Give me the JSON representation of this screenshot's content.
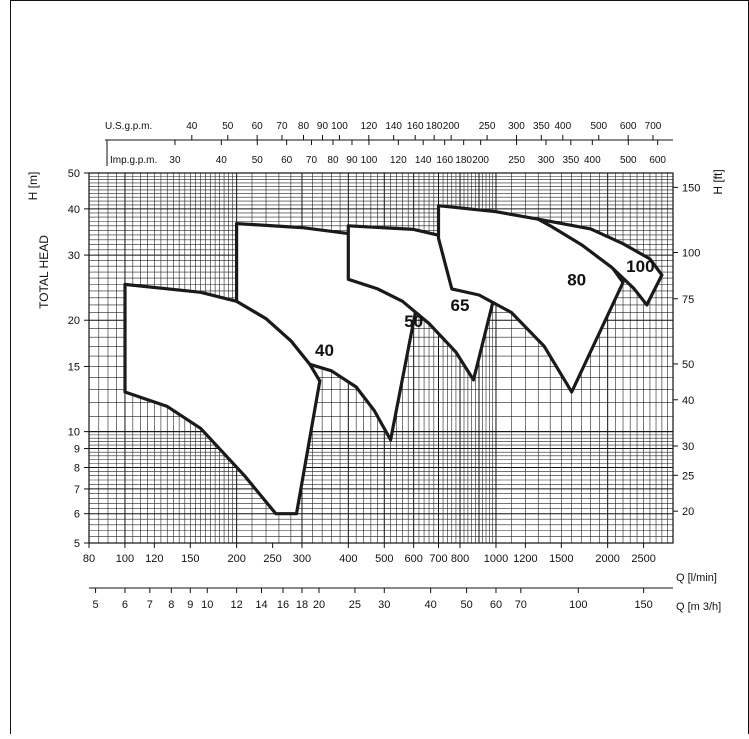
{
  "chart_data": {
    "type": "area",
    "y_axis_left": {
      "label": "TOTAL HEAD",
      "unit_label": "H  [m]",
      "scale": "log",
      "range": [
        5,
        50
      ],
      "ticks": [
        "5",
        "6",
        "7",
        "8",
        "9",
        "10",
        "15",
        "20",
        "30",
        "40",
        "50"
      ]
    },
    "y_axis_right": {
      "unit_label": "H  [ft]",
      "ticks": [
        {
          "v": 20,
          "label": "20"
        },
        {
          "v": 25,
          "label": "25"
        },
        {
          "v": 30,
          "label": "30"
        },
        {
          "v": 40,
          "label": "40"
        },
        {
          "v": 50,
          "label": "50"
        },
        {
          "v": 75,
          "label": "75"
        },
        {
          "v": 100,
          "label": "100"
        },
        {
          "v": 150,
          "label": "150"
        }
      ]
    },
    "x_axis_lpm": {
      "unit_label": "Q [l/min]",
      "scale": "log",
      "range": [
        80,
        3000
      ],
      "ticks": [
        "80",
        "100",
        "120",
        "150",
        "200",
        "250",
        "300",
        "400",
        "500",
        "600",
        "700",
        "800",
        "1000",
        "1200",
        "1500",
        "2000",
        "2500"
      ]
    },
    "x_axis_m3h": {
      "unit_label": "Q [m 3/h]",
      "ticks": [
        "5",
        "6",
        "7",
        "8",
        "9",
        "10",
        "12",
        "14",
        "16",
        "18",
        "20",
        "25",
        "30",
        "40",
        "50",
        "60",
        "70",
        "100",
        "150"
      ]
    },
    "x_axis_usgpm": {
      "label": "U.S.g.p.m.",
      "ticks": [
        "40",
        "50",
        "60",
        "70",
        "80",
        "90",
        "100",
        "120",
        "140",
        "160",
        "180",
        "200",
        "250",
        "300",
        "350",
        "400",
        "500",
        "600",
        "700"
      ]
    },
    "x_axis_impgpm": {
      "label": "Imp.g.p.m.",
      "ticks": [
        "30",
        "40",
        "50",
        "60",
        "70",
        "80",
        "90",
        "100",
        "120",
        "140",
        "160",
        "180",
        "200",
        "250",
        "300",
        "350",
        "400",
        "500",
        "600"
      ]
    },
    "series": [
      {
        "name": "40",
        "label_at": [
          345,
          16
        ],
        "polygon": [
          [
            100,
            12.8
          ],
          [
            100,
            25
          ],
          [
            160,
            23.8
          ],
          [
            200,
            22.5
          ],
          [
            240,
            20.2
          ],
          [
            280,
            17.6
          ],
          [
            315,
            15.2
          ],
          [
            335,
            13.7
          ],
          [
            290,
            6
          ],
          [
            255,
            6
          ],
          [
            210,
            7.6
          ],
          [
            160,
            10.2
          ],
          [
            130,
            11.7
          ]
        ]
      },
      {
        "name": "50",
        "label_at": [
          600,
          19.2
        ],
        "polygon": [
          [
            200,
            22.5
          ],
          [
            200,
            36.5
          ],
          [
            300,
            35.6
          ],
          [
            400,
            34.3
          ],
          [
            480,
            32.3
          ],
          [
            560,
            28.8
          ],
          [
            625,
            24.5
          ],
          [
            520,
            9.5
          ],
          [
            470,
            11.4
          ],
          [
            420,
            13.2
          ],
          [
            360,
            14.6
          ],
          [
            315,
            15.2
          ],
          [
            280,
            17.6
          ],
          [
            240,
            20.2
          ]
        ]
      },
      {
        "name": "65",
        "label_at": [
          800,
          21.2
        ],
        "polygon": [
          [
            400,
            34.3
          ],
          [
            400,
            36
          ],
          [
            600,
            35.2
          ],
          [
            760,
            33.3
          ],
          [
            900,
            30.5
          ],
          [
            1030,
            27.2
          ],
          [
            870,
            13.8
          ],
          [
            780,
            16.4
          ],
          [
            660,
            19.6
          ],
          [
            560,
            22.5
          ],
          [
            480,
            24.3
          ],
          [
            400,
            25.8
          ]
        ]
      },
      {
        "name": "80",
        "label_at": [
          1650,
          24.8
        ],
        "polygon": [
          [
            700,
            33.3
          ],
          [
            700,
            40.8
          ],
          [
            1000,
            39.3
          ],
          [
            1300,
            37.5
          ],
          [
            1600,
            34.8
          ],
          [
            1900,
            31
          ],
          [
            2200,
            25.3
          ],
          [
            1600,
            12.8
          ],
          [
            1350,
            17
          ],
          [
            1100,
            21
          ],
          [
            900,
            23.4
          ],
          [
            760,
            24.3
          ]
        ]
      },
      {
        "name": "100",
        "label_at": [
          2450,
          27
        ],
        "polygon": [
          [
            1300,
            37.5
          ],
          [
            1800,
            35.3
          ],
          [
            2200,
            32.2
          ],
          [
            2600,
            29.3
          ],
          [
            2800,
            26.5
          ],
          [
            2550,
            22
          ],
          [
            2350,
            24.4
          ],
          [
            2050,
            27.8
          ],
          [
            1700,
            32
          ],
          [
            1400,
            36
          ]
        ]
      }
    ]
  }
}
